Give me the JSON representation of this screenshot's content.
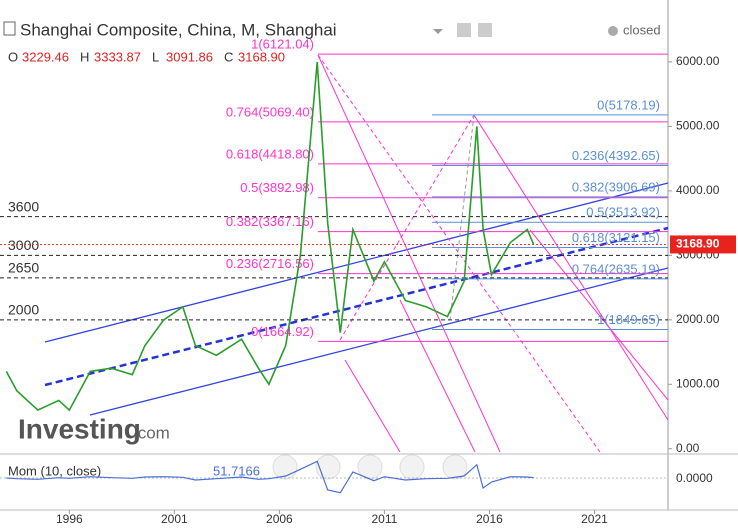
{
  "header": {
    "title": "Shanghai Composite, China, M, Shanghai",
    "status": "closed",
    "ohlc": [
      {
        "key": "O",
        "value": "3229.46"
      },
      {
        "key": "H",
        "value": "3333.87"
      },
      {
        "key": "L",
        "value": "3091.86"
      },
      {
        "key": "C",
        "value": "3168.90"
      }
    ],
    "brand": "Investing",
    "brand_suffix": ".com"
  },
  "chart_data": {
    "type": "line",
    "color": "#2a9d2a",
    "x": [
      1993.0,
      1993.5,
      1994.5,
      1995.5,
      1996.0,
      1997.0,
      1998.0,
      1999.0,
      1999.6,
      2000.5,
      2001.4,
      2002.0,
      2003.0,
      2004.2,
      2005.0,
      2005.5,
      2006.3,
      2007.0,
      2007.8,
      2008.3,
      2008.9,
      2009.5,
      2010.5,
      2011.0,
      2012.0,
      2013.0,
      2014.0,
      2014.8,
      2015.4,
      2015.7,
      2016.1,
      2017.0,
      2017.8,
      2018.1
    ],
    "values": [
      1200,
      900,
      600,
      750,
      600,
      1200,
      1250,
      1150,
      1600,
      2000,
      2200,
      1600,
      1450,
      1700,
      1250,
      1000,
      1600,
      3000,
      6000,
      3500,
      1800,
      3400,
      2600,
      2900,
      2300,
      2200,
      2050,
      2600,
      5000,
      3400,
      2700,
      3200,
      3400,
      3168.9
    ],
    "xlim": [
      1992.7,
      2024.5
    ],
    "xticks": [
      1996,
      2001,
      2006,
      2011,
      2016,
      2021
    ],
    "ylim": [
      -50,
      6960
    ],
    "yticks": [
      {
        "value": 0,
        "label": "0.00"
      },
      {
        "value": 1000,
        "label": "1000.00"
      },
      {
        "value": 2000,
        "label": "2000.00"
      },
      {
        "value": 3000,
        "label": "3000.00"
      },
      {
        "value": 4000,
        "label": "4000.00"
      },
      {
        "value": 5000,
        "label": "5000.00"
      },
      {
        "value": 6000,
        "label": "6000.00"
      }
    ],
    "last_price": {
      "value": 3168.9,
      "label": "3168.90"
    },
    "levels": [
      {
        "value": 3600,
        "label": "3600"
      },
      {
        "value": 3000,
        "label": "3000"
      },
      {
        "value": 2650,
        "label": "2650"
      },
      {
        "value": 2000,
        "label": "2000"
      }
    ],
    "fib_left": [
      {
        "value": 6121.04,
        "label": "1(6121.04)"
      },
      {
        "value": 5069.4,
        "label": "0.764(5069.40)"
      },
      {
        "value": 4418.8,
        "label": "0.618(4418.80)"
      },
      {
        "value": 3892.98,
        "label": "0.5(3892.98)"
      },
      {
        "value": 3367.16,
        "label": "0.382(3367.16)"
      },
      {
        "value": 2716.56,
        "label": "0.236(2716.56)"
      },
      {
        "value": 1664.92,
        "label": "0(1664.92)"
      }
    ],
    "fib_right": [
      {
        "value": 5178.19,
        "label": "0(5178.19)"
      },
      {
        "value": 4392.65,
        "label": "0.236(4392.65)"
      },
      {
        "value": 3906.69,
        "label": "0.382(3906.69)"
      },
      {
        "value": 3513.92,
        "label": "0.5(3513.92)"
      },
      {
        "value": 3121.15,
        "label": "0.618(3121.15)"
      },
      {
        "value": 2635.19,
        "label": "0.764(2635.19)"
      },
      {
        "value": 1849.65,
        "label": "1(1849.65)"
      }
    ],
    "momentum": {
      "name": "Mom (10, close)",
      "value_label": "51.7166",
      "zero_label": "0.0000",
      "color": "#4a6fd6",
      "ylim": [
        -3000,
        3000
      ],
      "values": [
        0,
        -100,
        -200,
        50,
        -50,
        200,
        50,
        -50,
        150,
        200,
        100,
        -300,
        -100,
        150,
        -200,
        -100,
        300,
        1300,
        2500,
        -1800,
        -2200,
        900,
        -400,
        200,
        -300,
        -100,
        -50,
        300,
        2000,
        -1500,
        -600,
        200,
        150,
        51.7166
      ]
    }
  }
}
